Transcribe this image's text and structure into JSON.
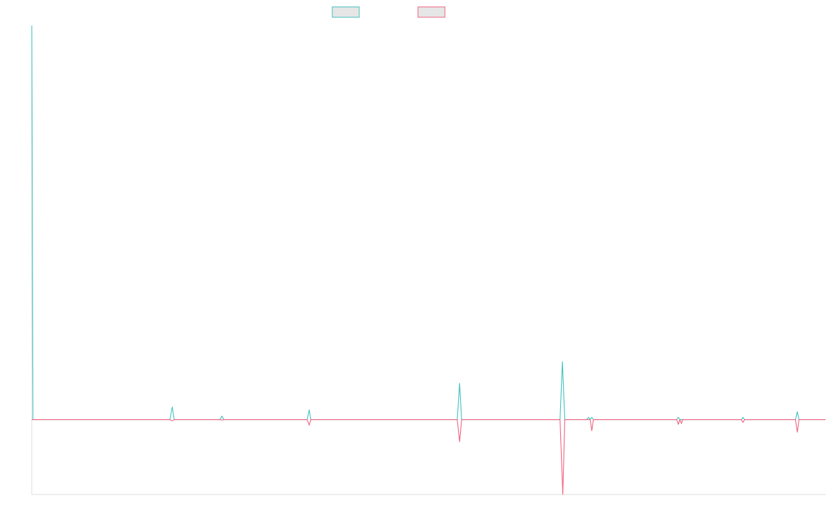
{
  "chart_data": {
    "type": "line",
    "title": "",
    "xlabel": "",
    "ylabel": "",
    "x_range": [
      0,
      100
    ],
    "ylim": [
      -0.19,
      1.0
    ],
    "grid": false,
    "legend_position": "top-center",
    "series": [
      {
        "color": "#3fbfbf",
        "points": [
          [
            0,
            1.0
          ],
          [
            0.15,
            0.0
          ],
          [
            17.4,
            0.0
          ],
          [
            17.7,
            0.032
          ],
          [
            17.95,
            0.0
          ],
          [
            23.7,
            0.0
          ],
          [
            23.95,
            0.009
          ],
          [
            24.2,
            0.0
          ],
          [
            34.7,
            0.0
          ],
          [
            34.95,
            0.025
          ],
          [
            35.15,
            0.0
          ],
          [
            53.6,
            0.0
          ],
          [
            53.9,
            0.092
          ],
          [
            54.15,
            0.0
          ],
          [
            66.55,
            0.0
          ],
          [
            66.85,
            0.147
          ],
          [
            67.15,
            0.0
          ],
          [
            69.9,
            0.0
          ],
          [
            70.15,
            0.006
          ],
          [
            70.35,
            0.0
          ],
          [
            70.55,
            0.006
          ],
          [
            70.75,
            0.0
          ],
          [
            81.25,
            0.0
          ],
          [
            81.45,
            0.006
          ],
          [
            81.65,
            0.0
          ],
          [
            89.4,
            0.0
          ],
          [
            89.6,
            0.006
          ],
          [
            89.8,
            0.0
          ],
          [
            96.2,
            0.0
          ],
          [
            96.45,
            0.02
          ],
          [
            96.65,
            0.0
          ],
          [
            100,
            0.0
          ]
        ]
      },
      {
        "color": "#f0607f",
        "points": [
          [
            0,
            0.0
          ],
          [
            17.4,
            0.0
          ],
          [
            17.7,
            -0.003
          ],
          [
            17.95,
            0.0
          ],
          [
            23.7,
            0.0
          ],
          [
            23.95,
            -0.001
          ],
          [
            24.2,
            0.0
          ],
          [
            34.7,
            0.0
          ],
          [
            34.95,
            -0.014
          ],
          [
            35.15,
            0.0
          ],
          [
            53.6,
            0.0
          ],
          [
            53.9,
            -0.056
          ],
          [
            54.15,
            0.0
          ],
          [
            66.55,
            0.0
          ],
          [
            66.9,
            -0.19
          ],
          [
            67.15,
            0.0
          ],
          [
            70.35,
            0.0
          ],
          [
            70.55,
            -0.028
          ],
          [
            70.75,
            0.0
          ],
          [
            81.25,
            0.0
          ],
          [
            81.45,
            -0.012
          ],
          [
            81.65,
            0.0
          ],
          [
            81.85,
            -0.01
          ],
          [
            82.0,
            0.0
          ],
          [
            89.4,
            0.0
          ],
          [
            89.6,
            -0.007
          ],
          [
            89.8,
            0.0
          ],
          [
            96.2,
            0.0
          ],
          [
            96.45,
            -0.032
          ],
          [
            96.65,
            0.0
          ],
          [
            100,
            0.0
          ]
        ]
      }
    ],
    "legend": [
      {
        "label": "",
        "border_color": "#3fbfbf",
        "fill_color": "#e6e6e6"
      },
      {
        "label": "",
        "border_color": "#f0607f",
        "fill_color": "#e6e6e6"
      }
    ],
    "axis_color": "#dddddd"
  }
}
